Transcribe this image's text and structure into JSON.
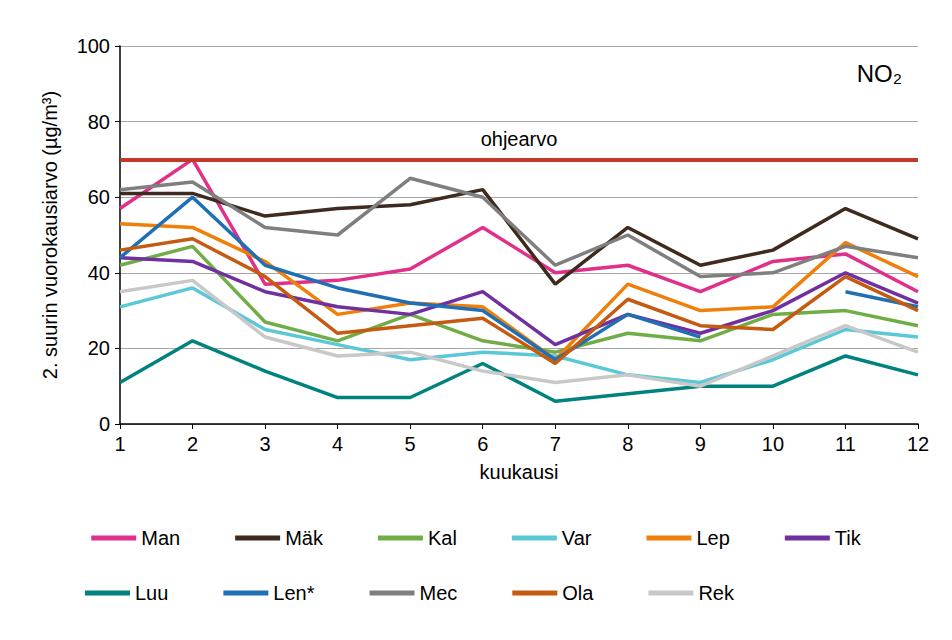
{
  "chart_data": {
    "type": "line",
    "title": "NO₂",
    "x_label": "kuukausi",
    "y_label": "2. suurin vuorokausiarvo (µg/m³)",
    "x": [
      1,
      2,
      3,
      4,
      5,
      6,
      7,
      8,
      9,
      10,
      11,
      12
    ],
    "xlim": [
      1,
      12
    ],
    "xticks": [
      1,
      2,
      3,
      4,
      5,
      6,
      7,
      8,
      9,
      10,
      11,
      12
    ],
    "ylim": [
      0,
      100
    ],
    "yticks": [
      0,
      20,
      40,
      60,
      80,
      100
    ],
    "grid": true,
    "legend": "bottom",
    "annotations": [
      {
        "text": "ohjearvo",
        "y": 70,
        "color": "#c0392b"
      }
    ],
    "series": [
      {
        "name": "Man",
        "color": "#e0308a",
        "values": [
          57,
          70,
          37,
          38,
          41,
          52,
          40,
          42,
          35,
          43,
          45,
          35
        ]
      },
      {
        "name": "Mäk",
        "color": "#3f2a1e",
        "values": [
          61,
          61,
          55,
          57,
          58,
          62,
          37,
          52,
          42,
          46,
          57,
          49
        ]
      },
      {
        "name": "Kal",
        "color": "#70ad47",
        "values": [
          42,
          47,
          27,
          22,
          29,
          22,
          19,
          24,
          22,
          29,
          30,
          26
        ]
      },
      {
        "name": "Var",
        "color": "#5bc8d8",
        "values": [
          31,
          36,
          25,
          21,
          17,
          19,
          18,
          13,
          11,
          17,
          25,
          23
        ]
      },
      {
        "name": "Lep",
        "color": "#f07f09",
        "values": [
          53,
          52,
          43,
          29,
          32,
          31,
          17,
          37,
          30,
          31,
          48,
          39
        ]
      },
      {
        "name": "Tik",
        "color": "#7030a0",
        "values": [
          44,
          43,
          35,
          31,
          29,
          35,
          21,
          29,
          24,
          30,
          40,
          32
        ]
      },
      {
        "name": "Luu",
        "color": "#00827f",
        "values": [
          11,
          22,
          14,
          7,
          7,
          16,
          6,
          8,
          10,
          10,
          18,
          13
        ]
      },
      {
        "name": "Len*",
        "color": "#1f6fb4",
        "values": [
          44,
          60,
          42,
          36,
          32,
          30,
          17,
          29,
          23,
          null,
          35,
          31
        ]
      },
      {
        "name": "Mec",
        "color": "#7f7f7f",
        "values": [
          62,
          64,
          52,
          50,
          65,
          60,
          42,
          50,
          39,
          40,
          47,
          44
        ]
      },
      {
        "name": "Ola",
        "color": "#c55a11",
        "values": [
          46,
          49,
          39,
          24,
          26,
          28,
          16,
          33,
          26,
          25,
          39,
          30
        ]
      },
      {
        "name": "Rek",
        "color": "#c8c8c8",
        "values": [
          35,
          38,
          23,
          18,
          19,
          14,
          11,
          13,
          10,
          18,
          26,
          19
        ]
      }
    ]
  }
}
